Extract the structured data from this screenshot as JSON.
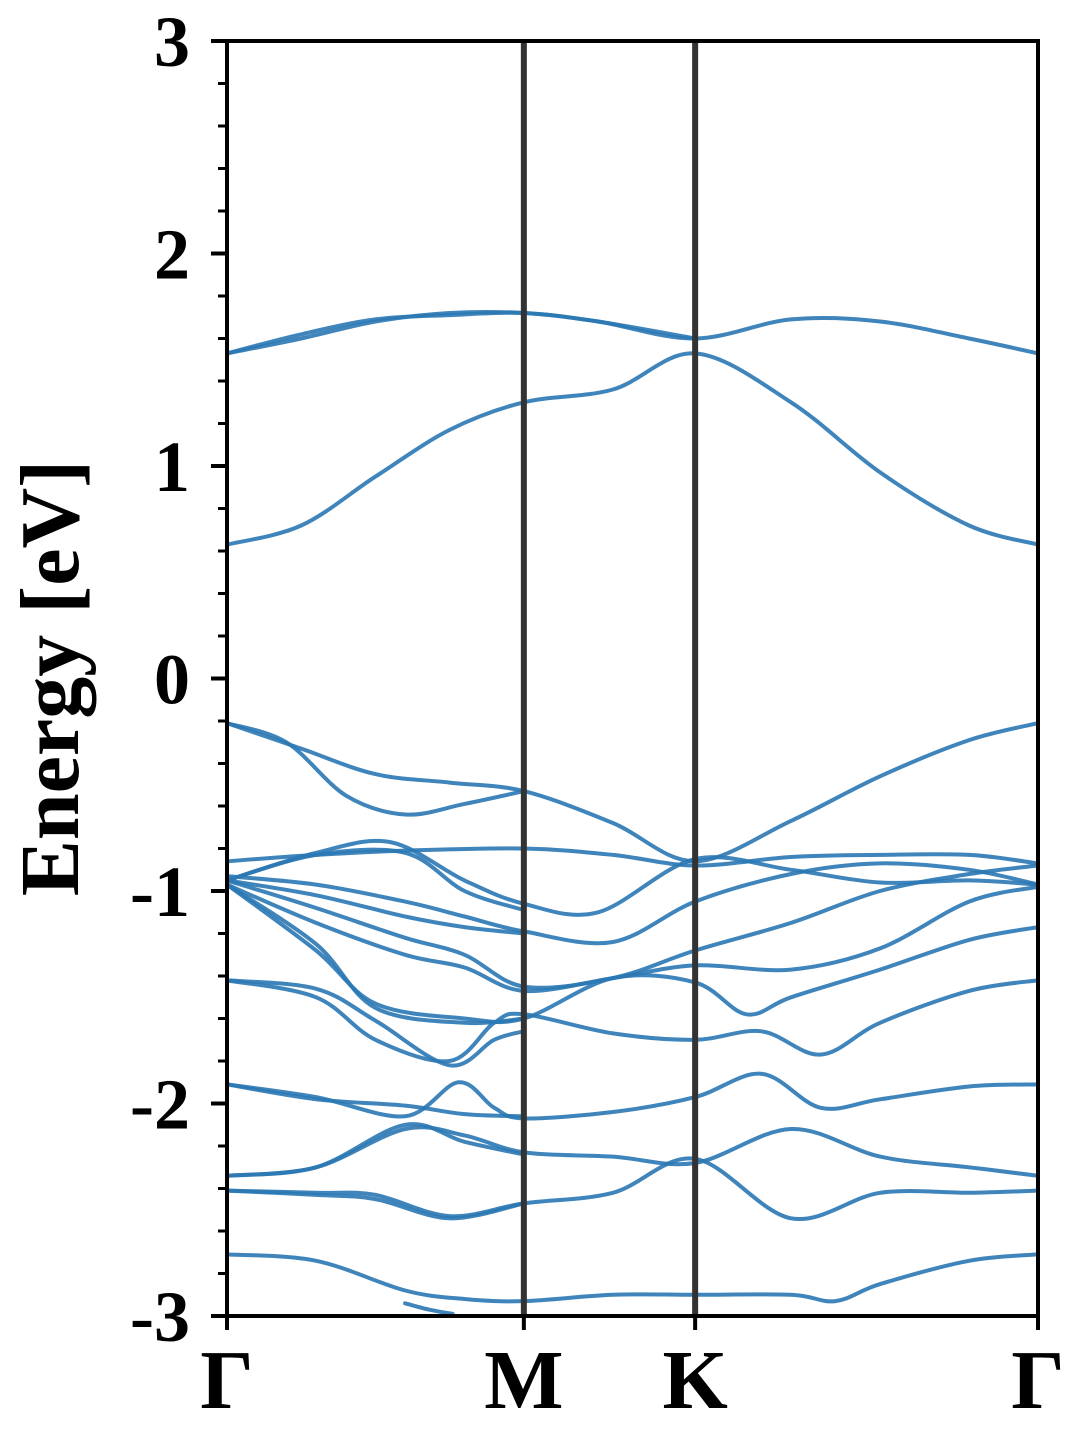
{
  "chart_data": {
    "type": "line",
    "title": "",
    "xlabel": "",
    "ylabel": "Energy [eV]",
    "ylim": [
      -3,
      3
    ],
    "yticks": [
      -3,
      -2,
      -1,
      0,
      1,
      2,
      3
    ],
    "ytick_labels": [
      "-3",
      "-2",
      "-1",
      "0",
      "1",
      "2",
      "3"
    ],
    "minor_ytick_step": 0.2,
    "grid": false,
    "legend": "none",
    "line_color": "#2a78b4",
    "kpoint_line_color": "#333333",
    "x_range": [
      0,
      2.732
    ],
    "kpoints": [
      {
        "label": "Γ",
        "x": 0
      },
      {
        "label": "M",
        "x": 1.0
      },
      {
        "label": "K",
        "x": 1.577
      },
      {
        "label": "Γ",
        "x": 2.732
      }
    ],
    "series": [
      {
        "x": [
          0,
          0.25,
          0.5,
          0.75,
          1.0,
          1.25,
          1.577,
          1.9,
          2.2,
          2.5,
          2.732
        ],
        "values": [
          1.53,
          1.6,
          1.68,
          1.72,
          1.72,
          1.68,
          1.6,
          1.69,
          1.68,
          1.6,
          1.53
        ]
      },
      {
        "x": [
          0,
          0.25,
          0.5,
          0.75,
          1.0,
          1.25,
          1.577
        ],
        "values": [
          1.53,
          1.62,
          1.69,
          1.71,
          1.72,
          1.68,
          1.6
        ]
      },
      {
        "x": [
          0,
          0.25,
          0.5,
          0.75,
          1.0,
          1.3,
          1.577,
          1.9,
          2.2,
          2.5,
          2.732
        ],
        "values": [
          0.63,
          0.72,
          0.95,
          1.17,
          1.3,
          1.36,
          1.53,
          1.3,
          0.97,
          0.72,
          0.63
        ]
      },
      {
        "x": [
          0,
          0.25,
          0.5,
          0.75,
          1.0,
          1.3,
          1.577,
          1.9,
          2.2,
          2.5,
          2.732
        ],
        "values": [
          -0.21,
          -0.33,
          -0.45,
          -0.49,
          -0.53,
          -0.68,
          -0.86,
          -0.67,
          -0.46,
          -0.29,
          -0.21
        ]
      },
      {
        "x": [
          0,
          0.2,
          0.4,
          0.6,
          0.8,
          1.0
        ],
        "values": [
          -0.21,
          -0.3,
          -0.55,
          -0.64,
          -0.59,
          -0.53
        ]
      },
      {
        "x": [
          0,
          0.3,
          0.6,
          1.0,
          1.3,
          1.577,
          1.9,
          2.2,
          2.5,
          2.732
        ],
        "values": [
          -0.86,
          -0.83,
          -0.81,
          -0.8,
          -0.83,
          -0.88,
          -0.84,
          -0.83,
          -0.83,
          -0.87
        ]
      },
      {
        "x": [
          0,
          0.3,
          0.55,
          0.8,
          1.0,
          1.25,
          1.577,
          1.9,
          2.2,
          2.5,
          2.732
        ],
        "values": [
          -0.95,
          -0.82,
          -0.77,
          -0.95,
          -1.06,
          -1.1,
          -0.85,
          -0.9,
          -0.96,
          -0.95,
          -0.97
        ]
      },
      {
        "x": [
          0,
          0.3,
          0.6,
          0.8,
          1.0
        ],
        "values": [
          -0.95,
          -0.83,
          -0.82,
          -1.0,
          -1.09
        ]
      },
      {
        "x": [
          0,
          0.3,
          0.6,
          0.8,
          1.0,
          1.3,
          1.577,
          1.9,
          2.2,
          2.5,
          2.732
        ],
        "values": [
          -0.93,
          -0.97,
          -1.05,
          -1.12,
          -1.19,
          -1.24,
          -1.05,
          -0.92,
          -0.87,
          -0.9,
          -0.97
        ]
      },
      {
        "x": [
          0,
          0.3,
          0.6,
          0.8,
          1.0
        ],
        "values": [
          -0.95,
          -1.02,
          -1.12,
          -1.17,
          -1.2
        ]
      },
      {
        "x": [
          0,
          0.3,
          0.6,
          0.8,
          1.0,
          1.3,
          1.577,
          1.9,
          2.2,
          2.5,
          2.732
        ],
        "values": [
          -0.95,
          -1.08,
          -1.22,
          -1.3,
          -1.45,
          -1.41,
          -1.28,
          -1.15,
          -1.0,
          -0.92,
          -0.88
        ]
      },
      {
        "x": [
          0,
          0.3,
          0.6,
          0.8,
          1.0,
          1.3,
          1.577,
          1.9,
          2.2,
          2.5,
          2.732
        ],
        "values": [
          -0.97,
          -1.15,
          -1.3,
          -1.36,
          -1.47,
          -1.41,
          -1.35,
          -1.37,
          -1.27,
          -1.05,
          -0.98
        ]
      },
      {
        "x": [
          0,
          0.3,
          0.5,
          0.8,
          1.0
        ],
        "values": [
          -0.97,
          -1.25,
          -1.55,
          -1.62,
          -1.6
        ]
      },
      {
        "x": [
          0,
          0.3,
          0.5,
          0.8,
          1.0,
          1.3,
          1.577,
          1.75,
          1.9,
          2.2,
          2.5,
          2.732
        ],
        "values": [
          -0.97,
          -1.28,
          -1.53,
          -1.6,
          -1.6,
          -1.41,
          -1.43,
          -1.58,
          -1.5,
          -1.37,
          -1.23,
          -1.17
        ]
      },
      {
        "x": [
          0,
          0.3,
          0.5,
          0.75,
          0.9,
          1.0
        ],
        "values": [
          -1.42,
          -1.46,
          -1.61,
          -1.82,
          -1.7,
          -1.66
        ]
      },
      {
        "x": [
          0,
          0.3,
          0.5,
          0.75,
          0.9,
          1.0,
          1.3,
          1.577,
          1.8,
          2.0,
          2.2,
          2.5,
          2.732
        ],
        "values": [
          -1.42,
          -1.5,
          -1.7,
          -1.8,
          -1.62,
          -1.58,
          -1.67,
          -1.7,
          -1.66,
          -1.77,
          -1.62,
          -1.47,
          -1.42
        ]
      },
      {
        "x": [
          0,
          0.3,
          0.6,
          0.78,
          0.9,
          1.0,
          1.3,
          1.577,
          1.8,
          2.0,
          2.2,
          2.5,
          2.732
        ],
        "values": [
          -1.91,
          -1.97,
          -2.06,
          -1.9,
          -2.02,
          -2.07,
          -2.04,
          -1.97,
          -1.86,
          -2.02,
          -1.98,
          -1.92,
          -1.91
        ]
      },
      {
        "x": [
          0,
          0.3,
          0.6,
          0.8,
          1.0
        ],
        "values": [
          -1.91,
          -1.98,
          -2.01,
          -2.05,
          -2.06
        ]
      },
      {
        "x": [
          0,
          0.3,
          0.6,
          0.8,
          1.0,
          1.3,
          1.577,
          1.9,
          2.2,
          2.5,
          2.732
        ],
        "values": [
          -2.34,
          -2.3,
          -2.12,
          -2.15,
          -2.23,
          -2.25,
          -2.28,
          -2.12,
          -2.25,
          -2.3,
          -2.34
        ]
      },
      {
        "x": [
          0,
          0.3,
          0.6,
          0.8,
          1.0
        ],
        "values": [
          -2.34,
          -2.3,
          -2.1,
          -2.18,
          -2.24
        ]
      },
      {
        "x": [
          0,
          0.3,
          0.5,
          0.75,
          1.0,
          1.3,
          1.577,
          1.9,
          2.2,
          2.5,
          2.732
        ],
        "values": [
          -2.41,
          -2.42,
          -2.43,
          -2.53,
          -2.47,
          -2.42,
          -2.26,
          -2.54,
          -2.42,
          -2.42,
          -2.41
        ]
      },
      {
        "x": [
          0,
          0.3,
          0.5,
          0.75,
          1.0
        ],
        "values": [
          -2.41,
          -2.43,
          -2.45,
          -2.54,
          -2.47
        ]
      },
      {
        "x": [
          0,
          0.3,
          0.6,
          0.8,
          1.0,
          1.3,
          1.577,
          1.9,
          2.05,
          2.2,
          2.5,
          2.732
        ],
        "values": [
          -2.71,
          -2.74,
          -2.88,
          -2.92,
          -2.93,
          -2.9,
          -2.9,
          -2.9,
          -2.93,
          -2.85,
          -2.74,
          -2.71
        ]
      },
      {
        "x": [
          0.6,
          0.68,
          0.76
        ],
        "values": [
          -2.94,
          -2.97,
          -2.99
        ]
      }
    ]
  }
}
